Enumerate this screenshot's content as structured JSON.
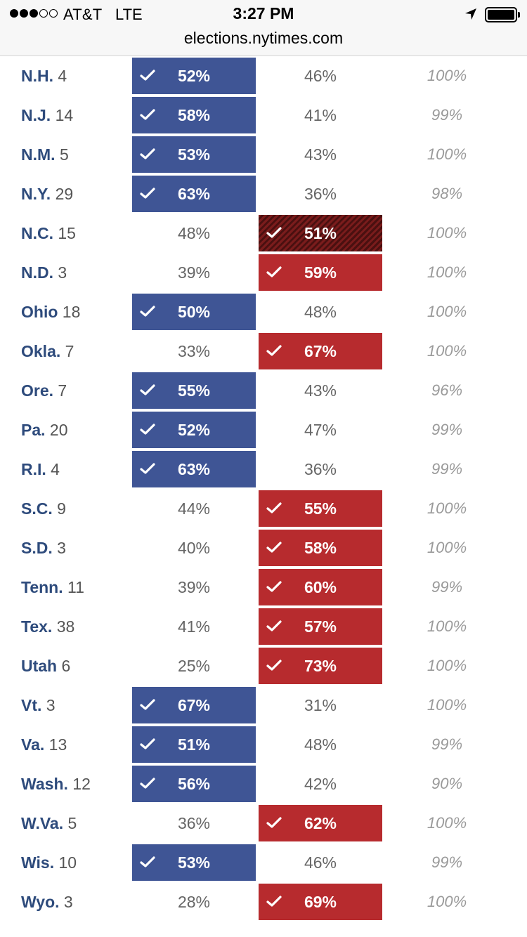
{
  "status_bar": {
    "carrier": "AT&T",
    "network": "LTE",
    "time": "3:27 PM",
    "signal_bars_filled": 3,
    "signal_bars_total": 5,
    "battery_level": 1.0,
    "location_icon": "location-arrow-icon"
  },
  "browser": {
    "url": "elections.nytimes.com"
  },
  "colors": {
    "dem_win": "#3f5595",
    "rep_win": "#b72b2e",
    "state_text": "#2e4b7c"
  },
  "rows": [
    {
      "state": "N.H.",
      "ev": "4",
      "dem": "52%",
      "rep": "46%",
      "reporting": "100%",
      "winner": "dem"
    },
    {
      "state": "N.J.",
      "ev": "14",
      "dem": "58%",
      "rep": "41%",
      "reporting": "99%",
      "winner": "dem"
    },
    {
      "state": "N.M.",
      "ev": "5",
      "dem": "53%",
      "rep": "43%",
      "reporting": "100%",
      "winner": "dem"
    },
    {
      "state": "N.Y.",
      "ev": "29",
      "dem": "63%",
      "rep": "36%",
      "reporting": "98%",
      "winner": "dem"
    },
    {
      "state": "N.C.",
      "ev": "15",
      "dem": "48%",
      "rep": "51%",
      "reporting": "100%",
      "winner": "rep",
      "flipped": true
    },
    {
      "state": "N.D.",
      "ev": "3",
      "dem": "39%",
      "rep": "59%",
      "reporting": "100%",
      "winner": "rep"
    },
    {
      "state": "Ohio",
      "ev": "18",
      "dem": "50%",
      "rep": "48%",
      "reporting": "100%",
      "winner": "dem"
    },
    {
      "state": "Okla.",
      "ev": "7",
      "dem": "33%",
      "rep": "67%",
      "reporting": "100%",
      "winner": "rep"
    },
    {
      "state": "Ore.",
      "ev": "7",
      "dem": "55%",
      "rep": "43%",
      "reporting": "96%",
      "winner": "dem"
    },
    {
      "state": "Pa.",
      "ev": "20",
      "dem": "52%",
      "rep": "47%",
      "reporting": "99%",
      "winner": "dem"
    },
    {
      "state": "R.I.",
      "ev": "4",
      "dem": "63%",
      "rep": "36%",
      "reporting": "99%",
      "winner": "dem"
    },
    {
      "state": "S.C.",
      "ev": "9",
      "dem": "44%",
      "rep": "55%",
      "reporting": "100%",
      "winner": "rep"
    },
    {
      "state": "S.D.",
      "ev": "3",
      "dem": "40%",
      "rep": "58%",
      "reporting": "100%",
      "winner": "rep"
    },
    {
      "state": "Tenn.",
      "ev": "11",
      "dem": "39%",
      "rep": "60%",
      "reporting": "99%",
      "winner": "rep"
    },
    {
      "state": "Tex.",
      "ev": "38",
      "dem": "41%",
      "rep": "57%",
      "reporting": "100%",
      "winner": "rep"
    },
    {
      "state": "Utah",
      "ev": "6",
      "dem": "25%",
      "rep": "73%",
      "reporting": "100%",
      "winner": "rep"
    },
    {
      "state": "Vt.",
      "ev": "3",
      "dem": "67%",
      "rep": "31%",
      "reporting": "100%",
      "winner": "dem"
    },
    {
      "state": "Va.",
      "ev": "13",
      "dem": "51%",
      "rep": "48%",
      "reporting": "99%",
      "winner": "dem"
    },
    {
      "state": "Wash.",
      "ev": "12",
      "dem": "56%",
      "rep": "42%",
      "reporting": "90%",
      "winner": "dem"
    },
    {
      "state": "W.Va.",
      "ev": "5",
      "dem": "36%",
      "rep": "62%",
      "reporting": "100%",
      "winner": "rep"
    },
    {
      "state": "Wis.",
      "ev": "10",
      "dem": "53%",
      "rep": "46%",
      "reporting": "99%",
      "winner": "dem"
    },
    {
      "state": "Wyo.",
      "ev": "3",
      "dem": "28%",
      "rep": "69%",
      "reporting": "100%",
      "winner": "rep"
    }
  ]
}
